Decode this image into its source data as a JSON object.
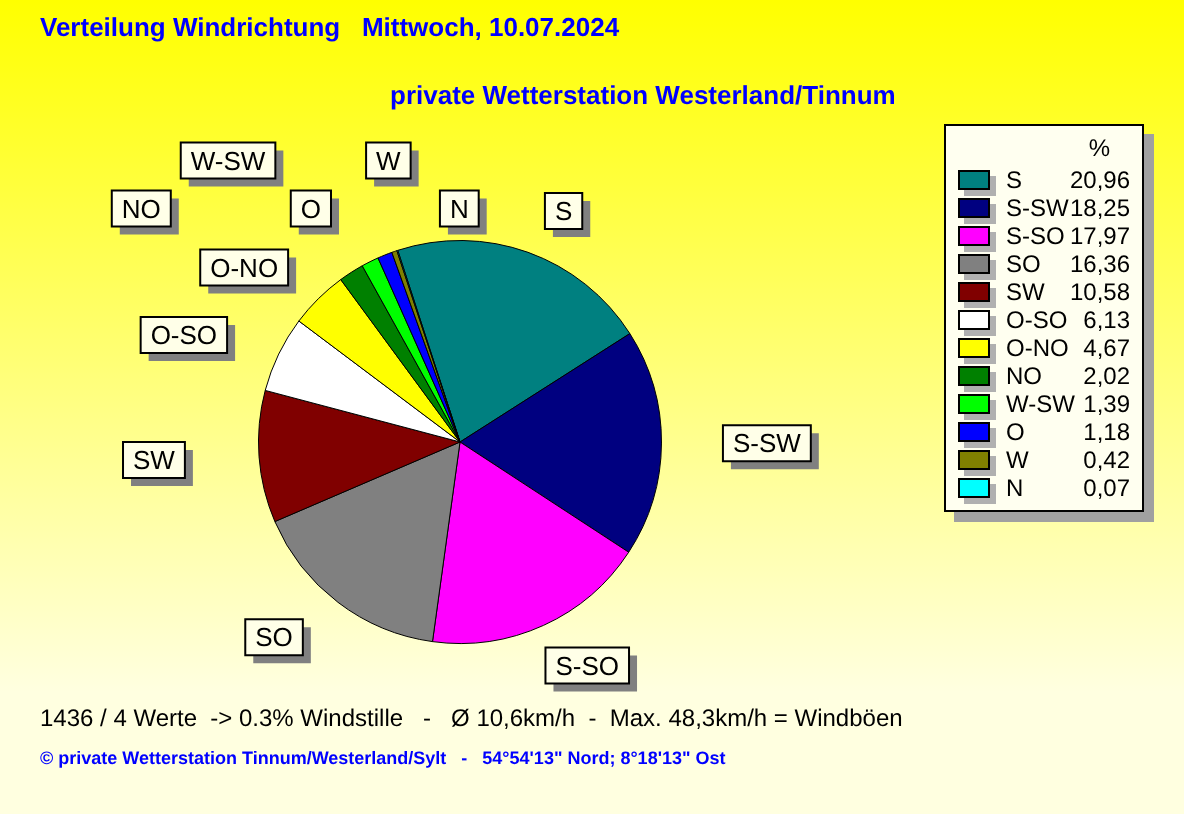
{
  "chart_data": {
    "type": "pie",
    "title": "Verteilung Windrichtung   Mittwoch, 10.07.2024",
    "subtitle": "private Wetterstation Westerland/Tinnum",
    "legend_title": "%",
    "legend": "right",
    "categories": [
      "S",
      "S-SW",
      "S-SO",
      "SO",
      "SW",
      "O-SO",
      "O-NO",
      "NO",
      "W-SW",
      "O",
      "W",
      "N"
    ],
    "values": [
      20.96,
      18.25,
      17.97,
      16.36,
      10.58,
      6.13,
      4.67,
      2.02,
      1.39,
      1.18,
      0.42,
      0.07
    ],
    "value_labels": [
      "20,96",
      "18,25",
      "17,97",
      "16,36",
      "10,58",
      "6,13",
      "4,67",
      "2,02",
      "1,39",
      "1,18",
      "0,42",
      "0,07"
    ],
    "colors": [
      "#008080",
      "#000080",
      "#ff00ff",
      "#808080",
      "#800000",
      "#ffffff",
      "#ffff00",
      "#008000",
      "#00ff00",
      "#0000ff",
      "#808000",
      "#00ffff"
    ],
    "annotations": [
      "1436 / 4 Werte  -> 0.3% Windstille   -   Ø 10,6km/h  -  Max. 48,3km/h = Windböen",
      "© private Wetterstation Tinnum/Westerland/Sylt   -   54°54'13\" Nord; 8°18'13\" Ost"
    ]
  }
}
